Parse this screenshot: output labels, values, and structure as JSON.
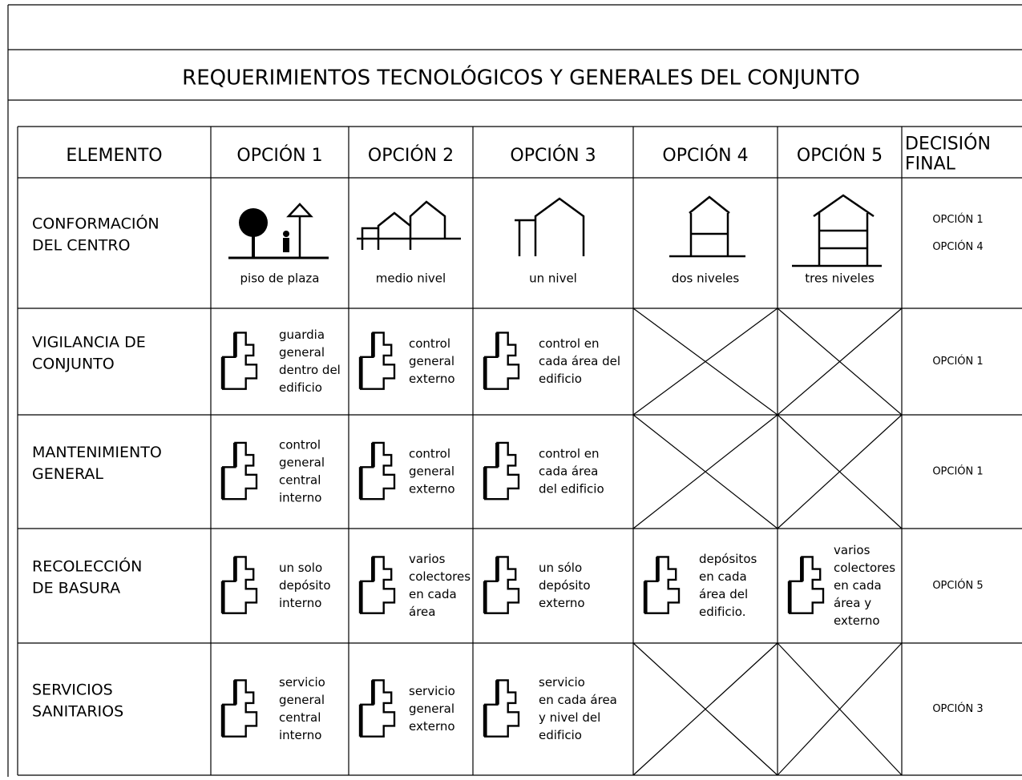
{
  "header": {
    "title": "REQUERIMIENTOS TECNOLÓGICOS  Y GENERALES DEL CONJUNTO"
  },
  "table": {
    "columns": [
      [
        "ELEMENTO"
      ],
      [
        "OPCIÓN 1"
      ],
      [
        "OPCIÓN 2"
      ],
      [
        "OPCIÓN 3"
      ],
      [
        "OPCIÓN 4"
      ],
      [
        "OPCIÓN 5"
      ],
      [
        "DECISIÓN",
        "FINAL"
      ]
    ],
    "rows": [
      {
        "element": [
          "CONFORMACIÓN",
          "DEL CENTRO"
        ],
        "options": [
          [
            "piso de plaza"
          ],
          [
            "medio nivel"
          ],
          [
            "un nivel"
          ],
          [
            "dos niveles"
          ],
          [
            "tres niveles"
          ]
        ],
        "decision": [
          "OPCIÓN 1",
          "OPCIÓN 4"
        ]
      },
      {
        "element": [
          "VIGILANCIA DE",
          "CONJUNTO"
        ],
        "options": [
          [
            "guardia",
            "general",
            "dentro del",
            "edificio"
          ],
          [
            "control",
            "general",
            "externo"
          ],
          [
            "control en",
            "cada área del",
            "edificio"
          ],
          null,
          null
        ],
        "decision": [
          "OPCIÓN 1"
        ]
      },
      {
        "element": [
          "MANTENIMIENTO",
          "GENERAL"
        ],
        "options": [
          [
            "control",
            "general",
            "central",
            "interno"
          ],
          [
            "control",
            "general",
            "externo"
          ],
          [
            "control en",
            "cada área",
            "del edificio"
          ],
          null,
          null
        ],
        "decision": [
          "OPCIÓN 1"
        ]
      },
      {
        "element": [
          "RECOLECCIÓN",
          "DE BASURA"
        ],
        "options": [
          [
            "un solo",
            "depósito",
            "interno"
          ],
          [
            "varios",
            "colectores",
            "en cada",
            "área"
          ],
          [
            "un sólo",
            "depósito",
            "externo"
          ],
          [
            "depósitos",
            "en cada",
            "área del",
            "edificio."
          ],
          [
            "varios",
            "colectores",
            "en cada",
            "área y",
            "externo"
          ]
        ],
        "decision": [
          "OPCIÓN 5"
        ]
      },
      {
        "element": [
          "SERVICIOS",
          "SANITARIOS"
        ],
        "options": [
          [
            "servicio",
            "general",
            "central",
            "interno"
          ],
          [
            "servicio",
            "general",
            "externo"
          ],
          [
            "servicio",
            "en cada área",
            "y nivel del",
            "edificio"
          ],
          null,
          null
        ],
        "decision": [
          "OPCIÓN 3"
        ]
      }
    ]
  }
}
